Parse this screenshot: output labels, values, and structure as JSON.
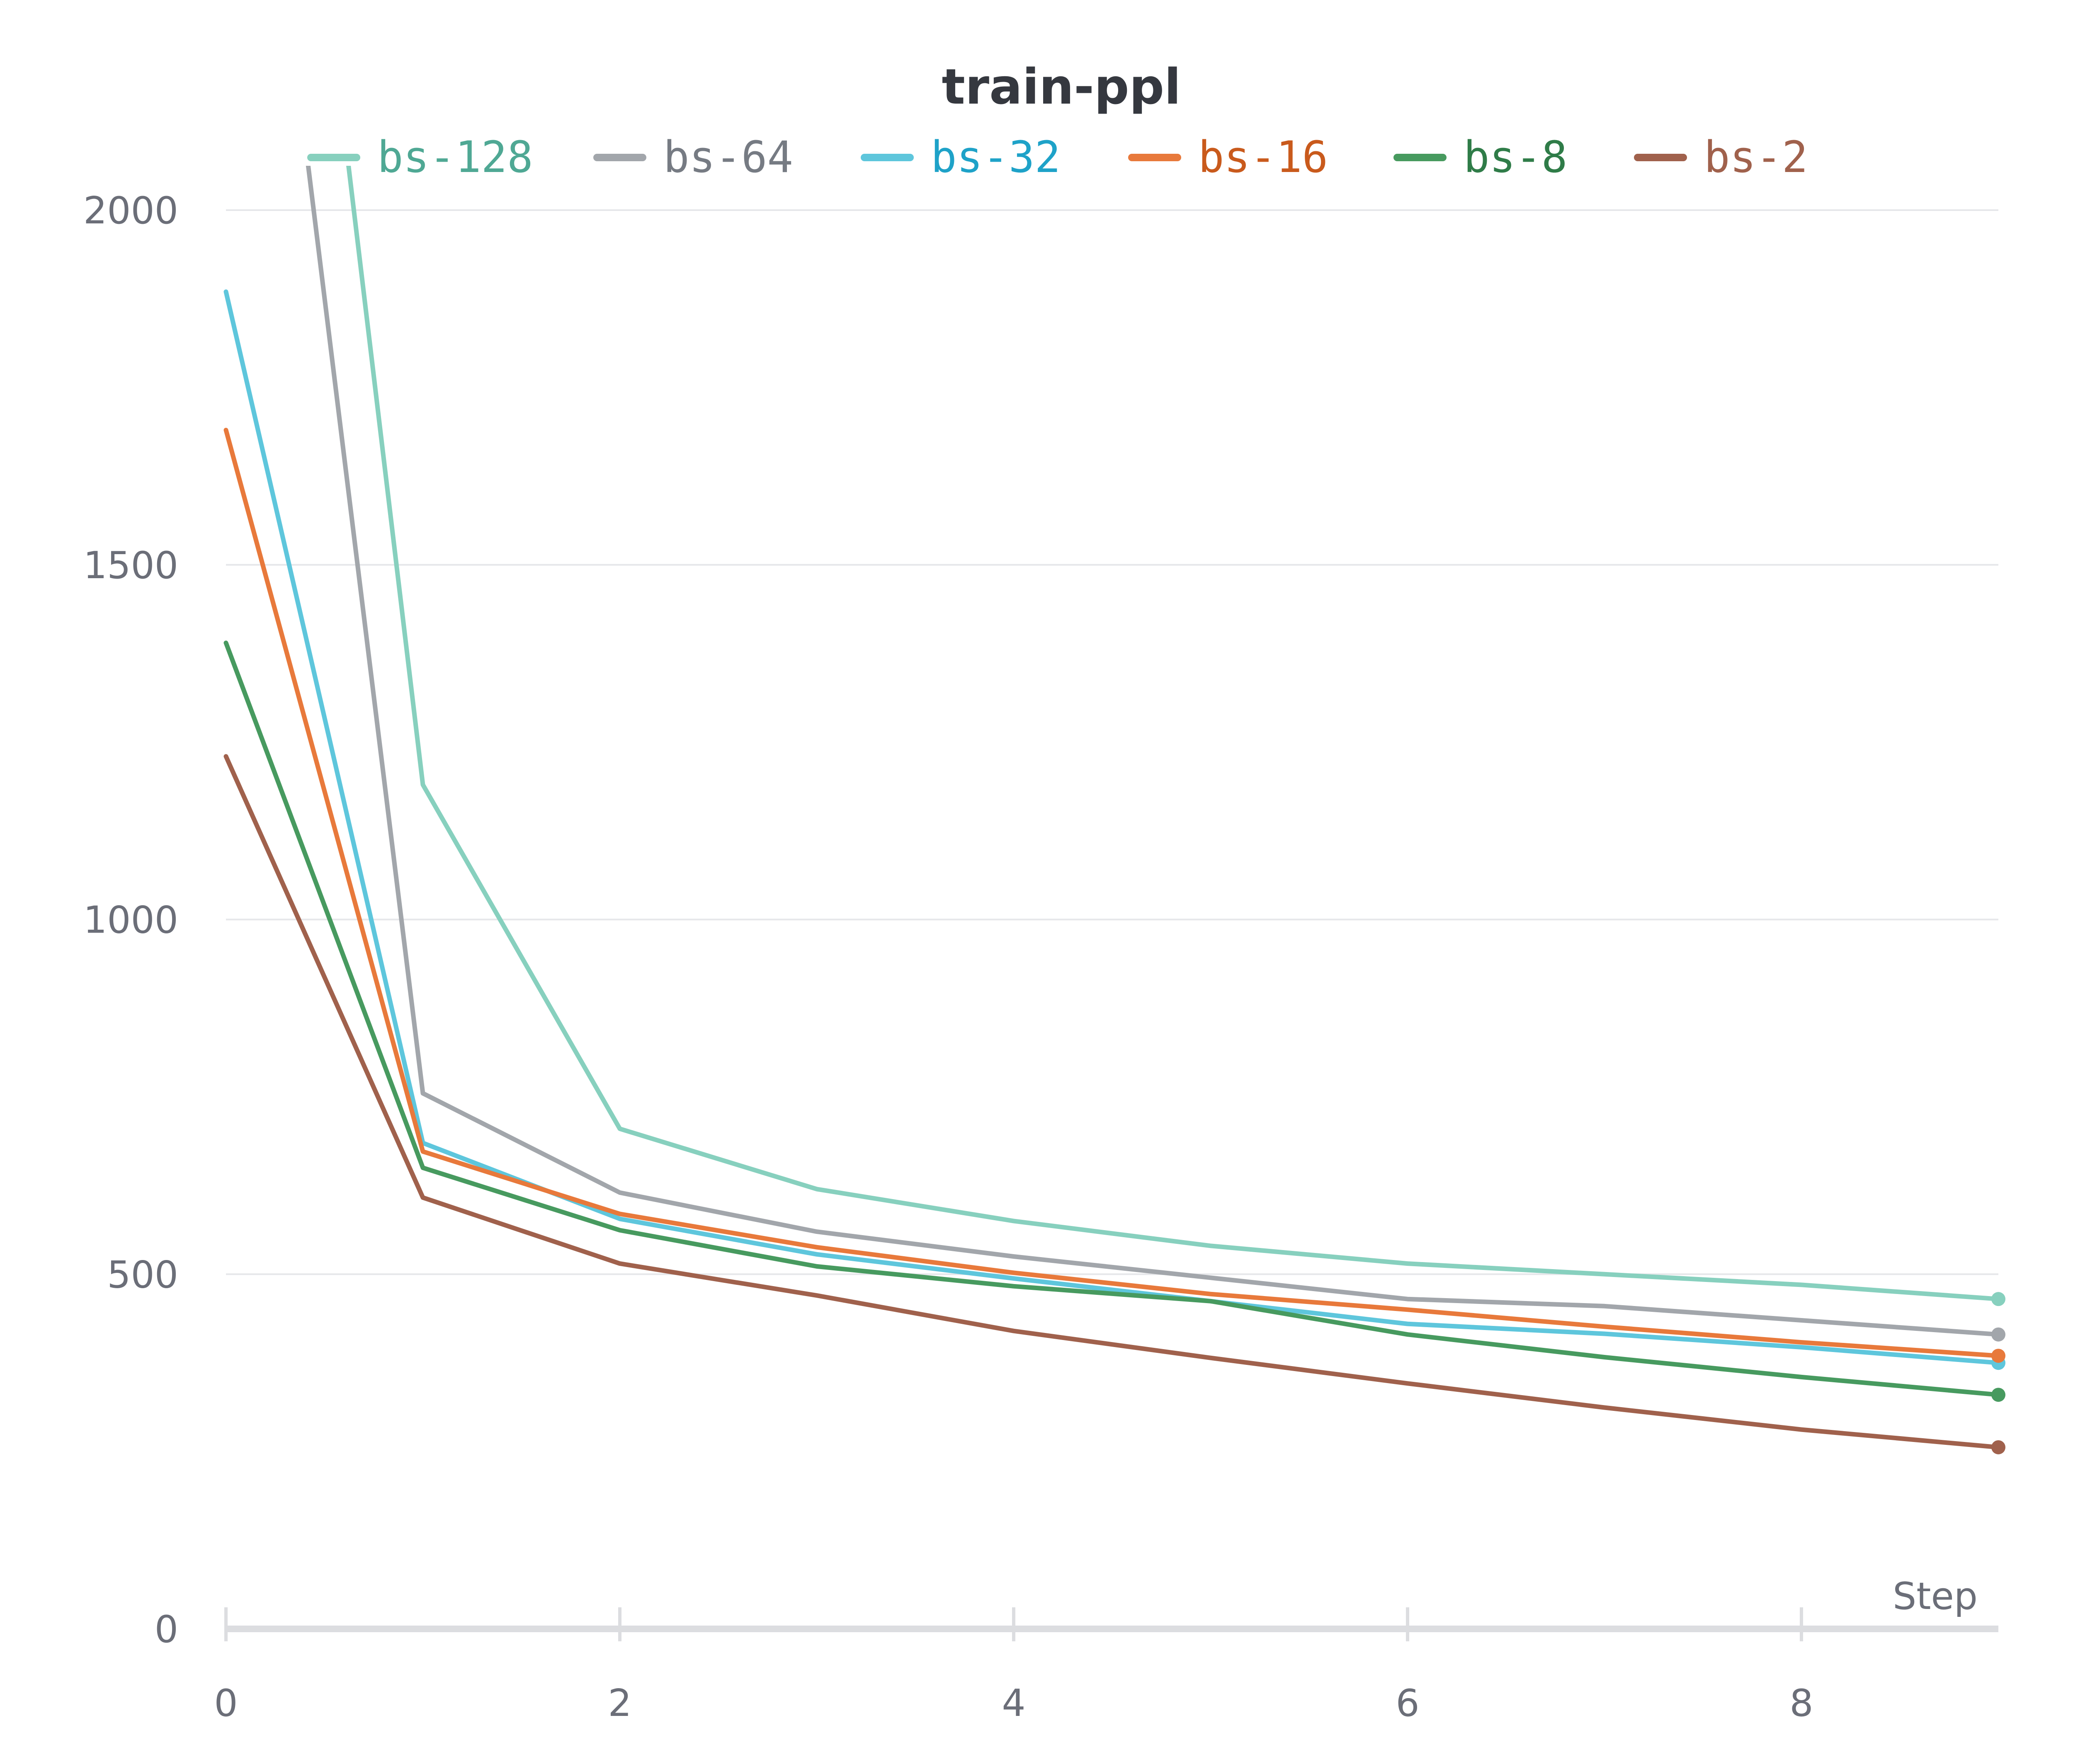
{
  "chart_data": {
    "type": "line",
    "title": "train-ppl",
    "xlabel": "Step",
    "ylabel": "",
    "xlim": [
      0,
      9
    ],
    "ylim": [
      0,
      2000
    ],
    "x_ticks": [
      0,
      2,
      4,
      6,
      8
    ],
    "y_ticks": [
      0,
      500,
      1000,
      1500,
      2000
    ],
    "grid": true,
    "legend_position": "top",
    "x": [
      0,
      1,
      2,
      3,
      4,
      5,
      6,
      7,
      8,
      9
    ],
    "series": [
      {
        "name": "bs-128",
        "color": "#87d0be",
        "label_color": "#4fa894",
        "values": [
          3500,
          1190,
          705,
          620,
          575,
          540,
          515,
          500,
          485,
          465
        ]
      },
      {
        "name": "bs-64",
        "color": "#a2a6ab",
        "label_color": "#767b83",
        "values": [
          3000,
          755,
          615,
          560,
          525,
          495,
          465,
          455,
          435,
          415
        ]
      },
      {
        "name": "bs-32",
        "color": "#5ec6dc",
        "label_color": "#1ea2c8",
        "values": [
          1885,
          685,
          578,
          528,
          494,
          462,
          430,
          416,
          397,
          375
        ]
      },
      {
        "name": "bs-16",
        "color": "#e8793b",
        "label_color": "#c95a1c",
        "values": [
          1690,
          673,
          585,
          538,
          502,
          472,
          450,
          426,
          404,
          385
        ]
      },
      {
        "name": "bs-8",
        "color": "#479a5f",
        "label_color": "#2f7c48",
        "values": [
          1390,
          650,
          562,
          511,
          483,
          462,
          415,
          383,
          355,
          330
        ]
      },
      {
        "name": "bs-2",
        "color": "#a0614c",
        "label_color": "#a0614c",
        "values": [
          1230,
          608,
          515,
          470,
          420,
          382,
          346,
          312,
          281,
          256
        ]
      }
    ]
  }
}
